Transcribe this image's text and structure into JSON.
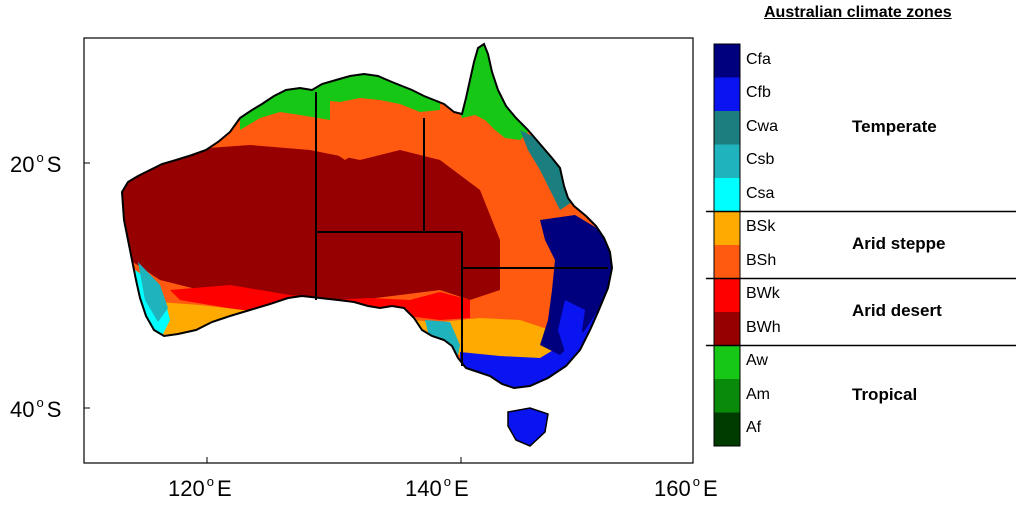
{
  "legend": {
    "title": "Australian climate zones",
    "zones": [
      {
        "code": "Cfa",
        "color": "#00007f",
        "group": "Temperate"
      },
      {
        "code": "Cfb",
        "color": "#0a14f0",
        "group": "Temperate"
      },
      {
        "code": "Cwa",
        "color": "#1b7f7f",
        "group": "Temperate"
      },
      {
        "code": "Csb",
        "color": "#1fb3bd",
        "group": "Temperate"
      },
      {
        "code": "Csa",
        "color": "#00ffff",
        "group": "Temperate"
      },
      {
        "code": "BSk",
        "color": "#ffaa00",
        "group": "Arid steppe"
      },
      {
        "code": "BSh",
        "color": "#ff5a10",
        "group": "Arid steppe"
      },
      {
        "code": "BWk",
        "color": "#ff0000",
        "group": "Arid desert"
      },
      {
        "code": "BWh",
        "color": "#960000",
        "group": "Arid desert"
      },
      {
        "code": "Aw",
        "color": "#16c716",
        "group": "Tropical"
      },
      {
        "code": "Am",
        "color": "#0a8a0a",
        "group": "Tropical"
      },
      {
        "code": "Af",
        "color": "#003b00",
        "group": "Tropical"
      }
    ],
    "groups": [
      "Temperate",
      "Arid steppe",
      "Arid desert",
      "Tropical"
    ]
  },
  "axes": {
    "longitude_ticks": [
      {
        "value": "120",
        "hemisphere": "E"
      },
      {
        "value": "140",
        "hemisphere": "E"
      },
      {
        "value": "160",
        "hemisphere": "E"
      }
    ],
    "latitude_ticks": [
      {
        "value": "20",
        "hemisphere": "S"
      },
      {
        "value": "40",
        "hemisphere": "S"
      }
    ]
  }
}
